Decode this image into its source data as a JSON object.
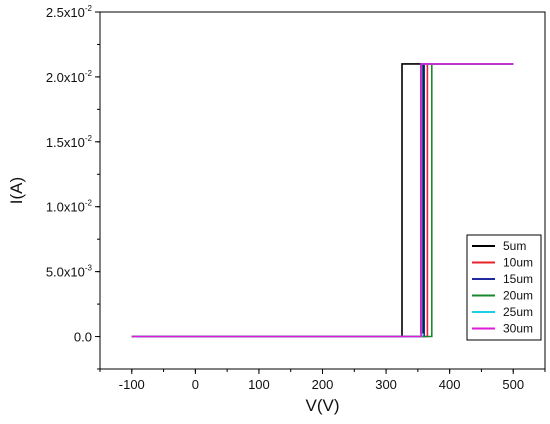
{
  "chart_data": {
    "type": "line",
    "xlabel": "V(V)",
    "ylabel": "I(A)",
    "xlim": [
      -150,
      550
    ],
    "ylim": [
      -0.0025,
      0.025
    ],
    "x_ticks": [
      -100,
      0,
      100,
      200,
      300,
      400,
      500
    ],
    "y_ticks": [
      {
        "value": 0.025,
        "mantissa": "2.5x10",
        "exp": "-2"
      },
      {
        "value": 0.02,
        "mantissa": "2.0x10",
        "exp": "-2"
      },
      {
        "value": 0.015,
        "mantissa": "1.5x10",
        "exp": "-2"
      },
      {
        "value": 0.01,
        "mantissa": "1.0x10",
        "exp": "-2"
      },
      {
        "value": 0.005,
        "mantissa": "5.0x10",
        "exp": "-3"
      },
      {
        "value": 0.0,
        "mantissa": "0.0",
        "exp": ""
      }
    ],
    "grid": false,
    "legend_position": "right",
    "series": [
      {
        "name": "5um",
        "color": "#000000",
        "points": [
          [
            -100,
            0
          ],
          [
            325,
            0
          ],
          [
            325,
            0.021
          ],
          [
            355,
            0.021
          ],
          [
            355,
            0.0003
          ],
          [
            358,
            0.0003
          ],
          [
            358,
            0.021
          ],
          [
            500,
            0.021
          ]
        ]
      },
      {
        "name": "10um",
        "color": "#e8232b",
        "points": [
          [
            -100,
            0
          ],
          [
            365,
            0
          ],
          [
            365,
            0.021
          ],
          [
            500,
            0.021
          ]
        ]
      },
      {
        "name": "15um",
        "color": "#1f2a9e",
        "points": [
          [
            -100,
            0
          ],
          [
            360,
            0
          ],
          [
            360,
            0.021
          ],
          [
            500,
            0.021
          ]
        ]
      },
      {
        "name": "20um",
        "color": "#178a2f",
        "points": [
          [
            -100,
            0
          ],
          [
            372,
            0
          ],
          [
            372,
            0.021
          ],
          [
            500,
            0.021
          ]
        ]
      },
      {
        "name": "25um",
        "color": "#1ad0e6",
        "points": [
          [
            -100,
            0
          ],
          [
            356,
            0
          ],
          [
            356,
            0.021
          ],
          [
            500,
            0.021
          ]
        ]
      },
      {
        "name": "30um",
        "color": "#e01ad8",
        "points": [
          [
            -100,
            0
          ],
          [
            355,
            0
          ],
          [
            355,
            0.021
          ],
          [
            500,
            0.021
          ]
        ]
      }
    ]
  }
}
